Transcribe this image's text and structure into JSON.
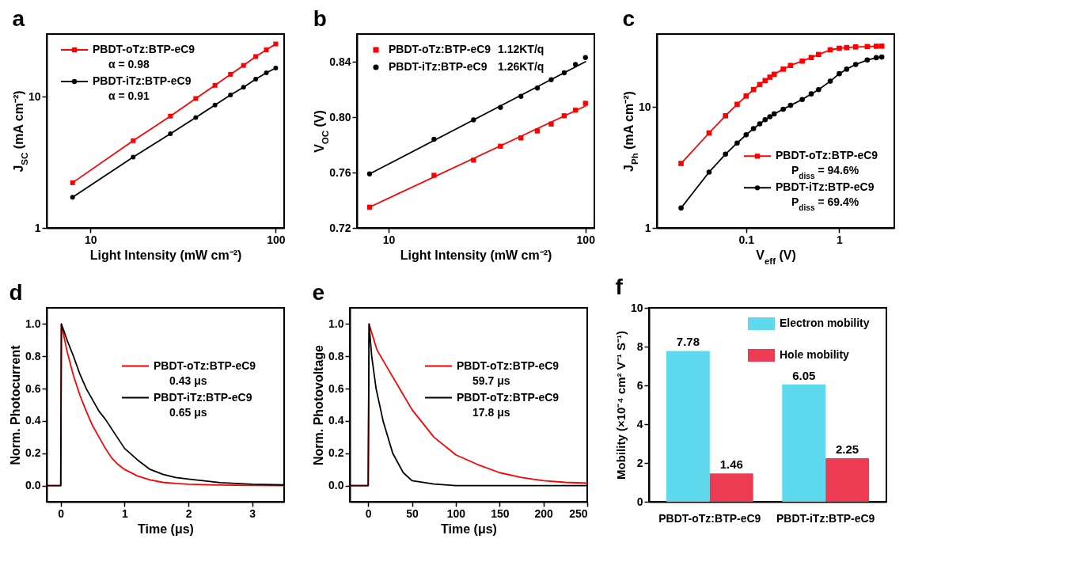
{
  "chart_data": [
    {
      "type": "line",
      "title": "a",
      "xlabel": "Light Intensity (mW cm⁻²)",
      "ylabel": "J$_{SC}$ (mA cm⁻²)",
      "log": "xy",
      "x": [
        8,
        17,
        27,
        37,
        47,
        57,
        67,
        78,
        89,
        100
      ],
      "xlim": [
        5.8,
        111
      ],
      "ylim": [
        1,
        30
      ],
      "xticks": [
        10,
        100
      ],
      "yticks": [
        1,
        10
      ],
      "legend": "top left",
      "annotations": [
        "α = 0.98",
        "α = 0.91"
      ],
      "series": [
        {
          "name": "PBDT-oTz:BTP-eC9",
          "color": "#ff0000",
          "marker": "square",
          "values": [
            2.21,
            4.62,
            7.11,
            9.68,
            12.2,
            14.8,
            17.3,
            20.2,
            22.7,
            25.2
          ]
        },
        {
          "name": "PBDT-iTz:BTP-eC9",
          "color": "#000000",
          "marker": "circle",
          "values": [
            1.71,
            3.46,
            5.22,
            6.94,
            8.64,
            10.3,
            11.8,
            13.6,
            15.2,
            16.5
          ]
        }
      ]
    },
    {
      "type": "scatter",
      "title": "b",
      "xlabel": "Light Intensity (mW cm⁻²)",
      "ylabel": "V$_{OC}$ (V)",
      "log": "x",
      "x": [
        8,
        17,
        27,
        37,
        47,
        57,
        67,
        78,
        89,
        100
      ],
      "xlim": [
        6.9,
        111
      ],
      "ylim": [
        0.72,
        0.86
      ],
      "xticks": [
        10,
        100
      ],
      "yticks": [
        0.72,
        0.76,
        {
          "value": 0.8,
          "label": "0.80"
        },
        0.84
      ],
      "legend": "top left",
      "annotations": [
        "1.12KT/q",
        "1.26KT/q"
      ],
      "series": [
        {
          "name": "PBDT-oTz:BTP-eC9",
          "color": "#ff0000",
          "marker": "square",
          "values": [
            0.735,
            0.758,
            0.769,
            0.779,
            0.785,
            0.79,
            0.795,
            0.801,
            0.805,
            0.81
          ]
        },
        {
          "name": "PBDT-iTz:BTP-eC9",
          "color": "#000000",
          "marker": "circle",
          "values": [
            0.759,
            0.784,
            0.798,
            0.807,
            0.815,
            0.821,
            0.827,
            0.832,
            0.838,
            0.843
          ]
        },
        {
          "type": "line",
          "color": "#ff0000",
          "x": [
            8,
            100
          ],
          "values": [
            0.735,
            0.808
          ]
        },
        {
          "type": "line",
          "color": "#000000",
          "x": [
            8,
            100
          ],
          "values": [
            0.759,
            0.84
          ]
        }
      ]
    },
    {
      "type": "line",
      "title": "c",
      "xlabel": "V$_{eff}$ (V)",
      "ylabel": "J$_{Ph}$ (mA cm⁻²)",
      "log": "xy",
      "x": [
        0.02,
        0.04,
        0.06,
        0.08,
        0.1,
        0.12,
        0.14,
        0.16,
        0.18,
        0.2,
        0.25,
        0.3,
        0.4,
        0.5,
        0.6,
        0.8,
        1,
        1.2,
        1.5,
        2,
        2.5,
        2.86
      ],
      "xlim": [
        0.011,
        3.9
      ],
      "ylim": [
        1,
        40
      ],
      "xticks": [
        0.1,
        1
      ],
      "yticks": [
        1,
        10
      ],
      "legend": "bottom right",
      "annotations": [
        "P$_{diss}$ = 94.6%",
        "P$_{diss}$ = 69.4%"
      ],
      "series": [
        {
          "name": "PBDT-oTz:BTP-eC9",
          "color": "#ff0000",
          "marker": "square",
          "values": [
            3.41,
            6.09,
            8.45,
            10.5,
            12.3,
            13.9,
            15.3,
            16.5,
            17.6,
            18.6,
            20.5,
            22.0,
            23.9,
            25.6,
            27.1,
            29.6,
            30.5,
            30.9,
            31.3,
            31.5,
            31.7,
            31.8
          ]
        },
        {
          "name": "PBDT-iTz:BTP-eC9",
          "color": "#000000",
          "marker": "circle",
          "values": [
            1.46,
            2.89,
            4.07,
            5.03,
            5.88,
            6.62,
            7.24,
            7.84,
            8.3,
            8.75,
            9.57,
            10.3,
            11.5,
            12.8,
            13.9,
            16.3,
            18.8,
            20.5,
            22.4,
            24.4,
            25.5,
            25.8
          ]
        }
      ]
    },
    {
      "type": "line",
      "title": "d",
      "xlabel": "Time (μs)",
      "ylabel": "Norm. Photocurrent",
      "x": [
        -0.22,
        0,
        0.01,
        0.1,
        0.2,
        0.3,
        0.4,
        0.5,
        0.6,
        0.7,
        0.8,
        0.9,
        1,
        1.2,
        1.4,
        1.6,
        1.8,
        2,
        2.5,
        3,
        3.5
      ],
      "xlim": [
        -0.22,
        3.5
      ],
      "ylim": [
        -0.1,
        1.1
      ],
      "xticks": [
        0,
        1,
        2,
        3
      ],
      "yticks": [
        {
          "value": 0,
          "label": "0.0"
        },
        0.2,
        0.4,
        0.6,
        0.8,
        {
          "value": 1,
          "label": "1.0"
        }
      ],
      "legend": "center right",
      "annotations": [
        "0.43 μs",
        "0.65 μs"
      ],
      "series": [
        {
          "name": "PBDT-oTz:BTP-eC9",
          "color": "#ff0000",
          "values": [
            0,
            0,
            1,
            0.83,
            0.68,
            0.56,
            0.46,
            0.37,
            0.3,
            0.23,
            0.17,
            0.13,
            0.1,
            0.06,
            0.035,
            0.02,
            0.013,
            0.008,
            0.003,
            0.001,
            0
          ]
        },
        {
          "name": "PBDT-iTz:BTP-eC9",
          "color": "#000000",
          "values": [
            0,
            0,
            1,
            0.9,
            0.8,
            0.69,
            0.6,
            0.53,
            0.46,
            0.41,
            0.35,
            0.29,
            0.23,
            0.16,
            0.1,
            0.07,
            0.05,
            0.04,
            0.018,
            0.008,
            0.004
          ]
        }
      ]
    },
    {
      "type": "line",
      "title": "e",
      "xlabel": "Time (μs)",
      "ylabel": "Norm. Photovoltage",
      "xlim": [
        -21,
        250
      ],
      "ylim": [
        -0.1,
        1.1
      ],
      "xticks": [
        0,
        50,
        100,
        150,
        200,
        250
      ],
      "yticks": [
        {
          "value": 0,
          "label": "0.0"
        },
        0.2,
        0.4,
        0.6,
        0.8,
        {
          "value": 1,
          "label": "1.0"
        }
      ],
      "legend": "center right",
      "annotations": [
        "59.7 μs",
        "17.8 μs"
      ],
      "series": [
        {
          "name": "PBDT-oTz:BTP-eC9",
          "color": "#ff0000",
          "x": [
            -21,
            0,
            1,
            10,
            25,
            50,
            75,
            100,
            125,
            150,
            175,
            200,
            225,
            250
          ],
          "values": [
            0,
            0,
            1,
            0.84,
            0.7,
            0.47,
            0.3,
            0.19,
            0.13,
            0.08,
            0.05,
            0.03,
            0.02,
            0.015
          ]
        },
        {
          "name": "PBDT-oTz:BTP-eC9",
          "color": "#000000",
          "x": [
            -21,
            0,
            1,
            4,
            9,
            17,
            28,
            40,
            50,
            75,
            100,
            150,
            200,
            250
          ],
          "values": [
            0,
            0,
            1,
            0.8,
            0.6,
            0.4,
            0.2,
            0.08,
            0.03,
            0.01,
            0,
            0,
            0,
            0
          ]
        }
      ]
    },
    {
      "type": "bar",
      "title": "f",
      "ylabel": "Mobility (×10⁻⁴ cm² V⁻¹ S⁻¹)",
      "categories": [
        "PBDT-oTz:BTP-eC9",
        "PBDT-iTz:BTP-eC9"
      ],
      "ylim": [
        0,
        10
      ],
      "yticks": [
        0,
        2,
        4,
        6,
        8,
        10
      ],
      "legend": "top right",
      "data_labels": true,
      "series": [
        {
          "name": "Electron mobility",
          "color": "#5fd9ee",
          "values": [
            7.78,
            6.05
          ]
        },
        {
          "name": "Hole mobility",
          "color": "#ec3b53",
          "values": [
            1.46,
            2.25
          ]
        }
      ]
    }
  ]
}
